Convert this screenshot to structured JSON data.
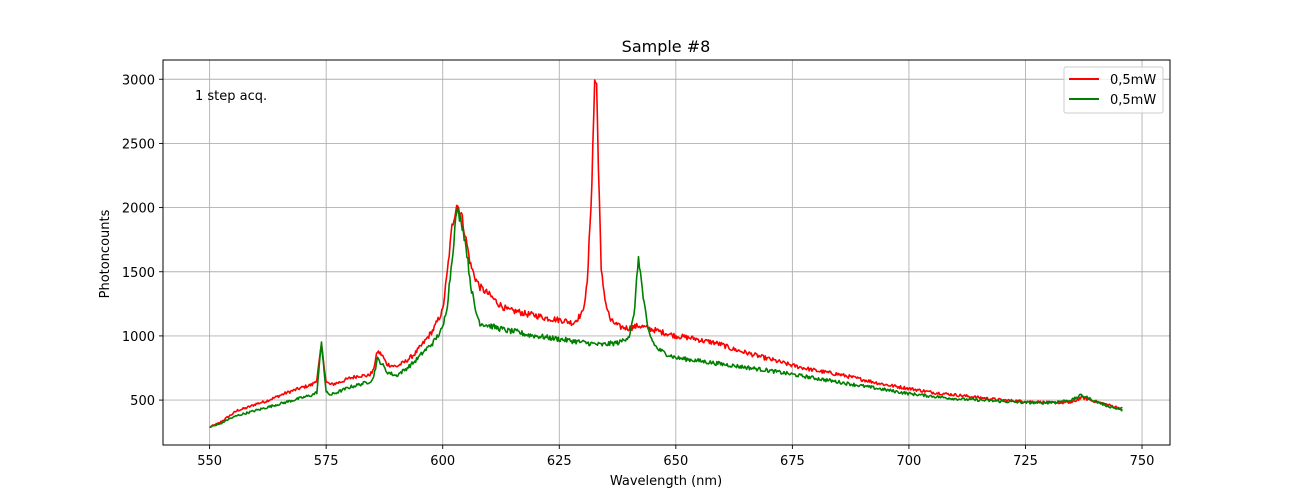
{
  "chart_data": {
    "type": "line",
    "title": "Sample #8",
    "xlabel": "Wavelength (nm)",
    "ylabel": "Photoncounts",
    "annotation": "1 step acq.",
    "xlim": [
      540,
      756
    ],
    "ylim": [
      150,
      3150
    ],
    "xticks": [
      550,
      575,
      600,
      625,
      650,
      675,
      700,
      725,
      750
    ],
    "yticks": [
      500,
      1000,
      1500,
      2000,
      2500,
      3000
    ],
    "grid": true,
    "legend_position": "top-right",
    "series": [
      {
        "name": "0,5mW",
        "color": "#ff0000",
        "x": [
          550,
          552,
          554,
          556,
          558,
          560,
          562,
          564,
          566,
          568,
          570,
          572,
          573,
          574,
          575,
          576,
          578,
          580,
          582,
          584,
          585,
          586,
          587,
          588,
          590,
          592,
          594,
          596,
          598,
          600,
          601,
          602,
          603,
          604,
          605,
          606,
          607,
          608,
          610,
          612,
          614,
          616,
          618,
          620,
          622,
          624,
          626,
          628,
          630,
          631,
          632,
          632.6,
          633,
          633.5,
          634,
          635,
          636,
          638,
          640,
          642,
          644,
          646,
          648,
          650,
          652,
          654,
          656,
          658,
          660,
          662,
          664,
          666,
          668,
          670,
          675,
          680,
          685,
          690,
          695,
          700,
          705,
          710,
          715,
          720,
          725,
          730,
          735,
          737,
          740,
          743,
          746
        ],
        "y": [
          290,
          320,
          370,
          420,
          440,
          470,
          490,
          520,
          550,
          575,
          600,
          620,
          660,
          930,
          640,
          620,
          640,
          670,
          690,
          690,
          720,
          880,
          850,
          780,
          760,
          800,
          860,
          950,
          1050,
          1200,
          1500,
          1850,
          2030,
          1950,
          1750,
          1550,
          1450,
          1380,
          1320,
          1250,
          1200,
          1190,
          1170,
          1160,
          1140,
          1130,
          1120,
          1100,
          1180,
          1400,
          2200,
          3000,
          2950,
          2200,
          1500,
          1250,
          1120,
          1070,
          1060,
          1080,
          1060,
          1040,
          1020,
          1000,
          990,
          980,
          960,
          950,
          930,
          900,
          880,
          860,
          840,
          820,
          770,
          730,
          700,
          660,
          620,
          590,
          560,
          540,
          520,
          500,
          490,
          480,
          480,
          520,
          490,
          460,
          430
        ]
      },
      {
        "name": "0,5mW",
        "color": "#008000",
        "x": [
          550,
          552,
          554,
          556,
          558,
          560,
          562,
          564,
          566,
          568,
          570,
          572,
          573,
          574,
          575,
          576,
          578,
          580,
          582,
          584,
          585,
          586,
          587,
          588,
          590,
          592,
          594,
          596,
          598,
          600,
          601,
          602,
          603,
          604,
          605,
          606,
          607,
          608,
          610,
          612,
          614,
          616,
          618,
          620,
          622,
          624,
          626,
          628,
          630,
          632,
          634,
          636,
          638,
          640,
          641,
          642,
          643,
          644,
          645,
          646,
          648,
          650,
          652,
          654,
          656,
          658,
          660,
          662,
          664,
          666,
          668,
          670,
          675,
          680,
          685,
          690,
          695,
          700,
          705,
          710,
          715,
          720,
          725,
          730,
          735,
          737,
          740,
          743,
          746
        ],
        "y": [
          290,
          310,
          350,
          380,
          400,
          420,
          440,
          460,
          480,
          500,
          520,
          540,
          560,
          950,
          560,
          540,
          570,
          600,
          620,
          640,
          660,
          820,
          780,
          720,
          690,
          740,
          800,
          880,
          950,
          1060,
          1250,
          1600,
          1980,
          1900,
          1700,
          1400,
          1200,
          1100,
          1080,
          1060,
          1040,
          1030,
          1010,
          1000,
          990,
          980,
          970,
          960,
          950,
          940,
          930,
          940,
          950,
          1000,
          1150,
          1620,
          1300,
          1050,
          960,
          900,
          860,
          830,
          820,
          810,
          800,
          790,
          780,
          770,
          760,
          750,
          740,
          730,
          700,
          670,
          640,
          610,
          580,
          550,
          530,
          510,
          500,
          490,
          480,
          480,
          500,
          540,
          490,
          450,
          420
        ]
      }
    ]
  }
}
